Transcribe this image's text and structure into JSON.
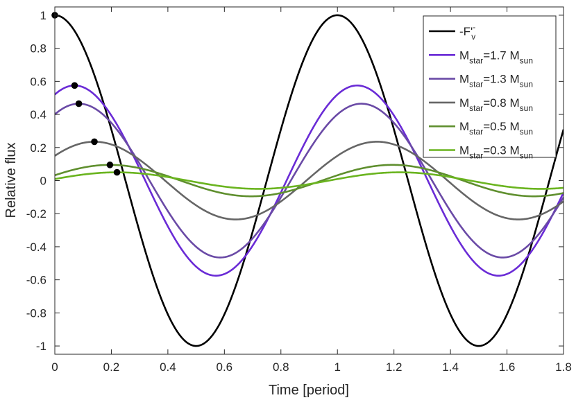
{
  "chart_data": {
    "type": "line",
    "title": "",
    "xlabel": "Time [period]",
    "ylabel": "Relative flux",
    "xlim": [
      0,
      1.8
    ],
    "ylim": [
      -1.05,
      1.05
    ],
    "xticks": [
      0,
      0.2,
      0.4,
      0.6,
      0.8,
      1,
      1.2,
      1.4,
      1.6,
      1.8
    ],
    "xtick_labels": [
      "0",
      "0.2",
      "0.4",
      "0.6",
      "0.8",
      "1",
      "1.2",
      "1.4",
      "1.6",
      "1.8"
    ],
    "yticks": [
      -1,
      -0.8,
      -0.6,
      -0.4,
      -0.2,
      0,
      0.2,
      0.4,
      0.6,
      0.8,
      1
    ],
    "ytick_labels": [
      "-1",
      "-0.8",
      "-0.6",
      "-0.4",
      "-0.2",
      "0",
      "0.2",
      "0.4",
      "0.6",
      "0.8",
      "1"
    ],
    "grid": false,
    "legend_position": "top-right",
    "series": [
      {
        "name": "-F'v",
        "legend": {
          "main": "-F'",
          "sup": "-",
          "sub": "v",
          "tail": "",
          "tailsub": ""
        },
        "color": "#000000",
        "amplitude": 1.0,
        "peak_phase": 0.0,
        "marker": [
          0.0,
          1.0
        ]
      },
      {
        "name": "Mstar=1.7 Msun",
        "legend": {
          "main": "M",
          "sup": "",
          "sub": "star",
          "tail": "=1.7 M",
          "tailsub": "sun"
        },
        "color": "#6a2bd6",
        "amplitude": 0.575,
        "peak_phase": 0.07,
        "marker": [
          0.07,
          0.575
        ]
      },
      {
        "name": "Mstar=1.3 Msun",
        "legend": {
          "main": "M",
          "sup": "",
          "sub": "star",
          "tail": "=1.3 M",
          "tailsub": "sun"
        },
        "color": "#6a4aa6",
        "amplitude": 0.465,
        "peak_phase": 0.085,
        "marker": [
          0.085,
          0.465
        ]
      },
      {
        "name": "Mstar=0.8 Msun",
        "legend": {
          "main": "M",
          "sup": "",
          "sub": "star",
          "tail": "=0.8 M",
          "tailsub": "sun"
        },
        "color": "#666666",
        "amplitude": 0.235,
        "peak_phase": 0.14,
        "marker": [
          0.14,
          0.235
        ]
      },
      {
        "name": "Mstar=0.5 Msun",
        "legend": {
          "main": "M",
          "sup": "",
          "sub": "star",
          "tail": "=0.5 M",
          "tailsub": "sun"
        },
        "color": "#5f8f2e",
        "amplitude": 0.095,
        "peak_phase": 0.195,
        "marker": [
          0.195,
          0.095
        ]
      },
      {
        "name": "Mstar=0.3 Msun",
        "legend": {
          "main": "M",
          "sup": "",
          "sub": "star",
          "tail": "=0.3 M",
          "tailsub": "sun"
        },
        "color": "#6ab41f",
        "amplitude": 0.05,
        "peak_phase": 0.22,
        "marker": [
          0.22,
          0.05
        ]
      }
    ]
  }
}
